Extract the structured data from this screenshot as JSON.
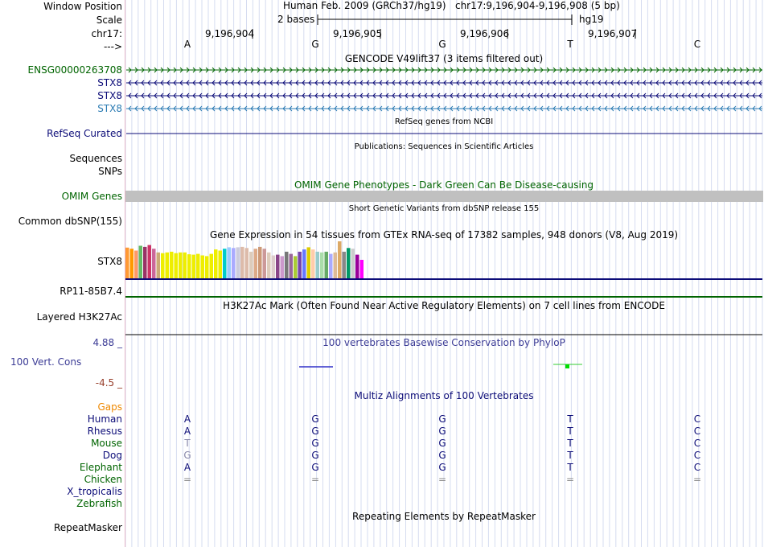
{
  "header": {
    "window_position_label": "Window Position",
    "scale_label": "Scale",
    "chrom_label": "chr17:",
    "strand_label": "--->",
    "assembly": "Human Feb. 2009 (GRCh37/hg19)",
    "position": "chr17:9,196,904-9,196,908 (5 bp)",
    "scale_text": "2 bases",
    "db": "hg19",
    "coords": [
      "9,196,904",
      "9,196,905",
      "9,196,906",
      "9,196,907"
    ],
    "bases": [
      "A",
      "G",
      "G",
      "T",
      "C"
    ]
  },
  "gencode": {
    "title": "GENCODE V49lift37 (3 items filtered out)",
    "genes": [
      "ENSG00000263708",
      "STX8",
      "STX8",
      "STX8"
    ],
    "colors": [
      "#006400",
      "#0c0c78",
      "#0c0c78",
      "#2b7bb3"
    ]
  },
  "refseq": {
    "title": "RefSeq genes from NCBI",
    "label": "RefSeq Curated",
    "color": "#0c0c78"
  },
  "publications": {
    "title": "Publications: Sequences in Scientific Articles",
    "labels": [
      "Sequences",
      "SNPs"
    ]
  },
  "omim": {
    "title": "OMIM Gene Phenotypes - Dark Green Can Be Disease-causing",
    "label": "OMIM Genes",
    "color": "#006400"
  },
  "dbsnp": {
    "title": "Short Genetic Variants from dbSNP release 155",
    "label": "Common dbSNP(155)"
  },
  "gtex": {
    "title": "Gene Expression in 54 tissues from GTEx RNA-seq of 17382 samples, 948 donors (V8, Aug 2019)",
    "label": "STX8",
    "values": [
      0.83,
      0.8,
      0.75,
      0.88,
      0.85,
      0.9,
      0.8,
      0.7,
      0.68,
      0.7,
      0.72,
      0.68,
      0.7,
      0.7,
      0.65,
      0.64,
      0.66,
      0.62,
      0.6,
      0.66,
      0.78,
      0.75,
      0.8,
      0.84,
      0.82,
      0.84,
      0.85,
      0.82,
      0.72,
      0.8,
      0.85,
      0.8,
      0.7,
      0.62,
      0.64,
      0.6,
      0.72,
      0.66,
      0.6,
      0.72,
      0.78,
      0.84,
      0.78,
      0.72,
      0.7,
      0.72,
      0.66,
      0.7,
      1.0,
      0.72,
      0.82,
      0.8,
      0.64,
      0.5
    ],
    "colors": [
      "#ff9933",
      "#ff9900",
      "#ff9966",
      "#66bb66",
      "#993366",
      "#cc3366",
      "#cc6699",
      "#ccaa77",
      "#eeee00",
      "#eeee00",
      "#eeee00",
      "#eeee00",
      "#eeee00",
      "#eeee00",
      "#eeee00",
      "#eeee00",
      "#eeee00",
      "#eeee00",
      "#eeee00",
      "#eeee00",
      "#eeee00",
      "#eeee00",
      "#00cccc",
      "#99ccff",
      "#aaaaff",
      "#ccccdd",
      "#ddbbaa",
      "#ddbbaa",
      "#ddccbb",
      "#ddaa88",
      "#cc9977",
      "#cc9999",
      "#ddccbb",
      "#ddcccc",
      "#884488",
      "#cc99cc",
      "#777777",
      "#996699",
      "#aacc33",
      "#7744aa",
      "#6677ff",
      "#ddcc00",
      "#ffccaa",
      "#99cccc",
      "#aaddaa",
      "#66aa66",
      "#aaaaff",
      "#ddbb99",
      "#ddaa66",
      "#888888",
      "#009966",
      "#cccccc",
      "#990099",
      "#ff00ff"
    ]
  },
  "rp11": {
    "label": "RP11-85B7.4",
    "color": "#006400"
  },
  "h3k27ac": {
    "title": "H3K27Ac Mark (Often Found Near Active Regulatory Elements) on 7 cell lines from ENCODE",
    "label": "Layered H3K27Ac"
  },
  "phylop": {
    "title": "100 vertebrates Basewise Conservation by PhyloP",
    "label": "100 Vert. Cons",
    "max": "4.88 _",
    "min": "-4.5 _",
    "title_color": "#3c3c96",
    "min_color": "#963c28"
  },
  "multiz": {
    "title": "Multiz Alignments of 100 Vertebrates",
    "gaps_label": "Gaps",
    "gaps_color": "#ee8800",
    "species": [
      {
        "name": "Human",
        "color": "#0c0c78",
        "bases": [
          "A",
          "G",
          "G",
          "T",
          "C"
        ]
      },
      {
        "name": "Rhesus",
        "color": "#0c0c78",
        "bases": [
          "A",
          "G",
          "G",
          "T",
          "C"
        ]
      },
      {
        "name": "Mouse",
        "color": "#006400",
        "bases": [
          "T",
          "G",
          "G",
          "T",
          "C"
        ]
      },
      {
        "name": "Dog",
        "color": "#0c0c78",
        "bases": [
          "G",
          "G",
          "G",
          "T",
          "C"
        ]
      },
      {
        "name": "Elephant",
        "color": "#006400",
        "bases": [
          "A",
          "G",
          "G",
          "T",
          "C"
        ]
      },
      {
        "name": "Chicken",
        "color": "#006400",
        "bases": [
          "=",
          "=",
          "=",
          "=",
          "="
        ]
      },
      {
        "name": "X_tropicalis",
        "color": "#0c0c78",
        "bases": [
          "",
          "",
          "",
          "",
          ""
        ]
      },
      {
        "name": "Zebrafish",
        "color": "#006400",
        "bases": [
          "",
          "",
          "",
          "",
          ""
        ]
      }
    ]
  },
  "repeatmasker": {
    "title": "Repeating Elements by RepeatMasker",
    "label": "RepeatMasker"
  }
}
